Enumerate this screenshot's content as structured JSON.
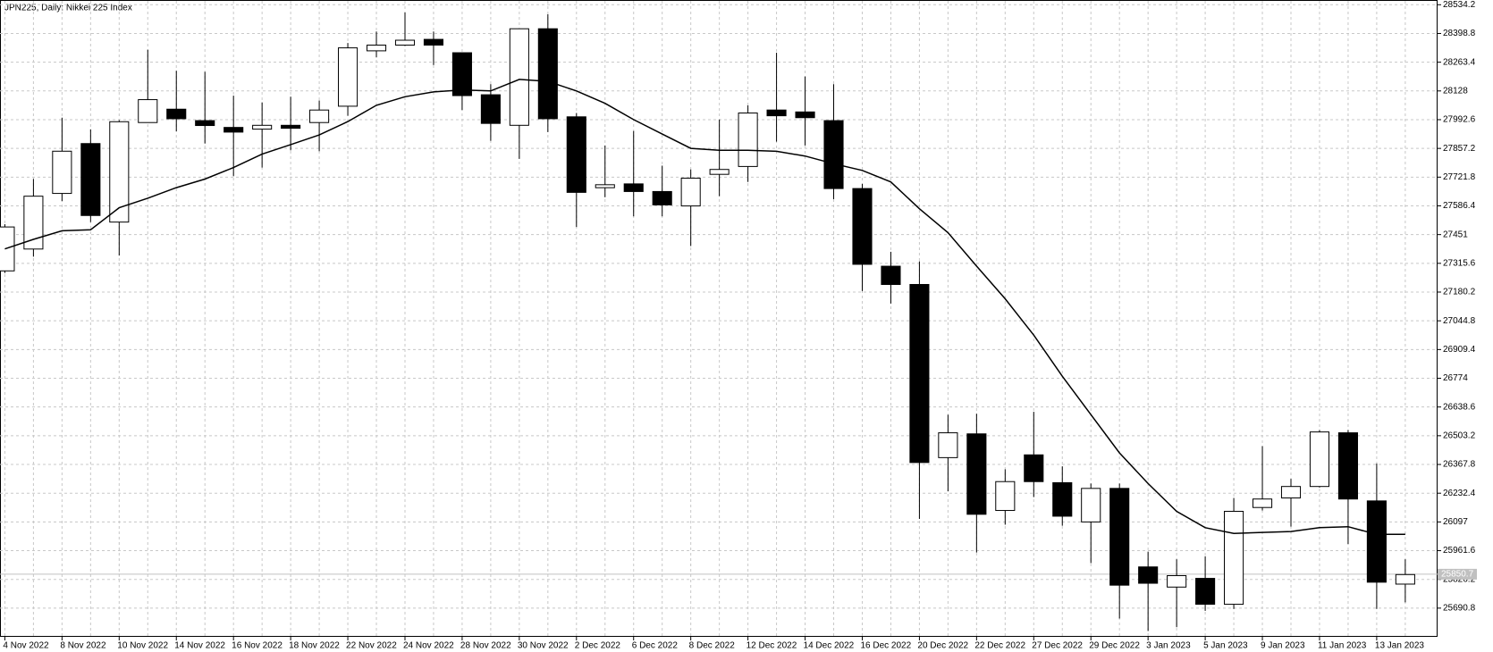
{
  "chart_data": {
    "type": "candlestick",
    "title": "JPN225, Daily:  Nikkei 225 Index",
    "categories": [
      "4 Nov 2022",
      null,
      "8 Nov 2022",
      null,
      "10 Nov 2022",
      null,
      "14 Nov 2022",
      null,
      "16 Nov 2022",
      null,
      "18 Nov 2022",
      null,
      "22 Nov 2022",
      null,
      "24 Nov 2022",
      null,
      "28 Nov 2022",
      null,
      "30 Nov 2022",
      null,
      "2 Dec 2022",
      null,
      "6 Dec 2022",
      null,
      "8 Dec 2022",
      null,
      "12 Dec 2022",
      null,
      "14 Dec 2022",
      null,
      "16 Dec 2022",
      null,
      "20 Dec 2022",
      null,
      "22 Dec 2022",
      null,
      "27 Dec 2022",
      null,
      "29 Dec 2022",
      null,
      "3 Jan 2023",
      null,
      "5 Jan 2023",
      null,
      "9 Jan 2023",
      null,
      "11 Jan 2023",
      null,
      "13 Jan 2023",
      null
    ],
    "open": [
      27280,
      27383,
      27645,
      27880,
      27510,
      27979,
      28042,
      27988,
      27956,
      27948,
      27966,
      27979,
      28056,
      28317,
      28344,
      28371,
      28308,
      28110,
      27966,
      28421,
      28006,
      27672,
      27690,
      27654,
      27586,
      27735,
      27772,
      28038,
      28029,
      27988,
      27668,
      27302,
      27216,
      26400,
      26512,
      26151,
      26413,
      26282,
      26097,
      26255,
      25885,
      25790,
      25831,
      25709,
      26165,
      26210,
      26264,
      26517,
      26196,
      25804
    ],
    "high": [
      27500,
      27713,
      28002,
      27947,
      27990,
      28322,
      28223,
      28218,
      28106,
      28074,
      28101,
      28083,
      28354,
      28408,
      28498,
      28408,
      28308,
      28160,
      28421,
      28489,
      28024,
      27871,
      27939,
      27776,
      27758,
      27993,
      28060,
      28308,
      28196,
      28160,
      27690,
      27370,
      27325,
      26602,
      26607,
      26345,
      26616,
      26359,
      26278,
      26278,
      25957,
      25921,
      25935,
      26210,
      26454,
      26300,
      26530,
      26530,
      26372,
      25921
    ],
    "low": [
      27270,
      27347,
      27609,
      27510,
      27352,
      27979,
      27938,
      27880,
      27726,
      27767,
      27848,
      27844,
      28011,
      28286,
      28340,
      28250,
      28038,
      27893,
      27808,
      27934,
      27487,
      27627,
      27537,
      27537,
      27397,
      27632,
      27699,
      27889,
      27871,
      27618,
      27185,
      27126,
      26111,
      26241,
      25953,
      26084,
      26214,
      26079,
      25903,
      25642,
      25583,
      25601,
      25678,
      25687,
      26151,
      26075,
      26259,
      25993,
      25687,
      25718
    ],
    "close": [
      27487,
      27632,
      27844,
      27541,
      27983,
      28087,
      27997,
      27965,
      27934,
      27966,
      27952,
      28038,
      28331,
      28344,
      28367,
      28344,
      28106,
      27975,
      28421,
      27997,
      27650,
      27686,
      27654,
      27591,
      27717,
      27758,
      28024,
      28011,
      28002,
      27668,
      27311,
      27216,
      26377,
      26517,
      26133,
      26287,
      26287,
      26124,
      26255,
      25799,
      25808,
      25844,
      25709,
      26147,
      26205,
      26264,
      26521,
      26205,
      25813,
      25849
    ],
    "moving_average": {
      "color": "#000000",
      "values": [
        27383.4,
        27428.5,
        27469.1,
        27473.6,
        27577.4,
        27622.6,
        27672.2,
        27712.8,
        27767.0,
        27830.2,
        27875.3,
        27920.4,
        27983.6,
        28060.3,
        28100.9,
        28123.5,
        28132.5,
        28128.0,
        28182.2,
        28173.2,
        28128.0,
        28069.4,
        27993.0,
        27924.9,
        27857.3,
        27848.2,
        27848.2,
        27843.7,
        27821.1,
        27785.0,
        27753.4,
        27699.3,
        27572.9,
        27460.1,
        27302.2,
        27148.7,
        26977.2,
        26783.2,
        26602.6,
        26422.1,
        26277.7,
        26146.8,
        26070.1,
        26043.0,
        26047.5,
        26052.0,
        26070.1,
        26074.6,
        26038.5,
        26038.5
      ]
    },
    "up_color": "#ffffff",
    "down_color": "#000000",
    "current_price": 25850.7,
    "ylim": [
      25555.6,
      28552.3
    ],
    "yticks": [
      25690.8,
      25826.2,
      25961.6,
      26097.0,
      26232.4,
      26367.8,
      26503.2,
      26638.6,
      26774.0,
      26909.4,
      27044.8,
      27180.2,
      27315.6,
      27451.0,
      27586.4,
      27721.8,
      27857.2,
      27992.6,
      28128.0,
      28263.4,
      28398.8,
      28534.2
    ],
    "grid": true
  }
}
